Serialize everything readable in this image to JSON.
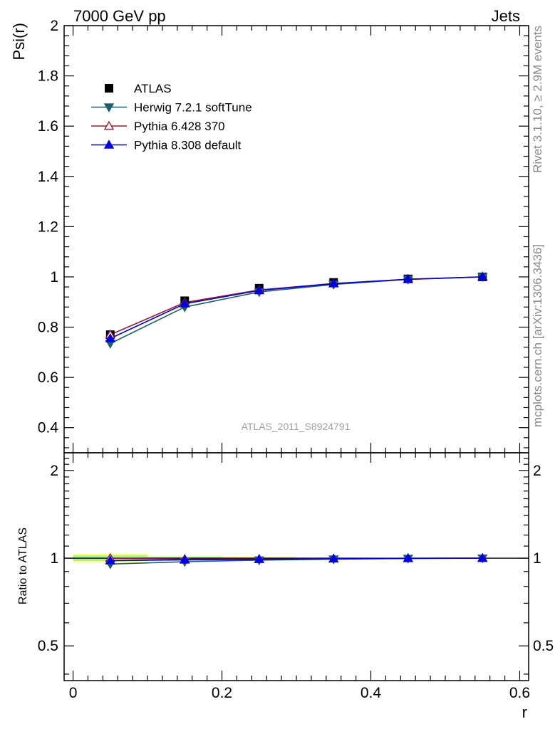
{
  "header": {
    "left": "7000 GeV pp",
    "right": "Jets"
  },
  "side_labels": {
    "rivet": "Rivet 3.1.10, ≥ 2.9M events",
    "mcplots": "mcplots.cern.ch [arXiv:1306.3436]"
  },
  "watermark": "ATLAS_2011_S8924791",
  "chart_data": {
    "type": "line",
    "ylabel": "Psi(r)",
    "xlabel": "r",
    "ratio_ylabel": "Ratio to ATLAS",
    "xlim": [
      -0.012,
      0.612
    ],
    "ylim": [
      0.3,
      2.0
    ],
    "ratio_ylim": [
      0.38,
      2.3
    ],
    "ratio_scale": "log",
    "x_ticks": [
      0,
      0.2,
      0.4,
      0.6
    ],
    "x_tick_labels": [
      "0",
      "0.2",
      "0.4",
      "0.6"
    ],
    "y_ticks": [
      0.4,
      0.6,
      0.8,
      1,
      1.2,
      1.4,
      1.6,
      1.8,
      2
    ],
    "y_tick_labels": [
      "0.4",
      "0.6",
      "0.8",
      "1",
      "1.2",
      "1.4",
      "1.6",
      "1.8",
      "2"
    ],
    "ratio_ticks": [
      0.5,
      1,
      2
    ],
    "ratio_tick_labels": [
      "0.5",
      "1",
      "2"
    ],
    "x": [
      0.05,
      0.15,
      0.25,
      0.35,
      0.45,
      0.55
    ],
    "bin_edges": [
      0.0,
      0.1,
      0.2,
      0.3,
      0.4,
      0.5,
      0.6
    ],
    "data": {
      "name": "ATLAS",
      "values": [
        0.77,
        0.905,
        0.955,
        0.978,
        0.992,
        1.0
      ],
      "rel_err": [
        0.035,
        0.018,
        0.01,
        0.006,
        0.003,
        0.0
      ]
    },
    "series": [
      {
        "name": "Herwig 7.2.1 softTune",
        "color": "#1f6069",
        "marker": "triangle-down",
        "values": [
          0.735,
          0.88,
          0.94,
          0.97,
          0.99,
          1.0
        ]
      },
      {
        "name": "Pythia 6.428 370",
        "color": "#9b1b30",
        "marker": "triangle-up-open",
        "values": [
          0.77,
          0.898,
          0.948,
          0.974,
          0.99,
          1.0
        ]
      },
      {
        "name": "Pythia 8.308 default",
        "color": "#0000e6",
        "marker": "triangle-up",
        "values": [
          0.755,
          0.893,
          0.946,
          0.973,
          0.991,
          1.0
        ]
      }
    ],
    "legend_position": "top-left"
  }
}
